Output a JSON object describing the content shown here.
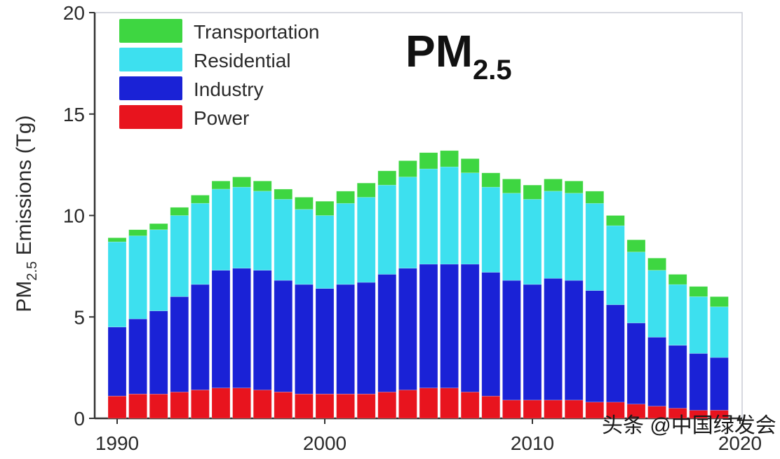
{
  "chart_data": {
    "type": "bar",
    "stacked": true,
    "title": "PM",
    "title_subscript": "2.5",
    "ylabel": "PM",
    "ylabel_subscript": "2.5",
    "ylabel_suffix": " Emissions (Tg)",
    "ylim": [
      0,
      20
    ],
    "yticks": [
      0,
      5,
      10,
      15,
      20
    ],
    "xticks": [
      1990,
      2000,
      2010,
      2020
    ],
    "legend_position": "top-left",
    "categories": [
      1990,
      1991,
      1992,
      1993,
      1994,
      1995,
      1996,
      1997,
      1998,
      1999,
      2000,
      2001,
      2002,
      2003,
      2004,
      2005,
      2006,
      2007,
      2008,
      2009,
      2010,
      2011,
      2012,
      2013,
      2014,
      2015,
      2016,
      2017,
      2018,
      2019
    ],
    "series": [
      {
        "name": "Power",
        "color": "#e8141e",
        "values": [
          1.1,
          1.2,
          1.2,
          1.3,
          1.4,
          1.5,
          1.5,
          1.4,
          1.3,
          1.2,
          1.2,
          1.2,
          1.2,
          1.3,
          1.4,
          1.5,
          1.5,
          1.3,
          1.1,
          0.9,
          0.9,
          0.9,
          0.9,
          0.8,
          0.8,
          0.7,
          0.6,
          0.5,
          0.4,
          0.4
        ]
      },
      {
        "name": "Industry",
        "color": "#1a22d6",
        "values": [
          3.4,
          3.7,
          4.1,
          4.7,
          5.2,
          5.8,
          5.9,
          5.9,
          5.5,
          5.4,
          5.2,
          5.4,
          5.5,
          5.8,
          6.0,
          6.1,
          6.1,
          6.3,
          6.1,
          5.9,
          5.7,
          6.0,
          5.9,
          5.5,
          4.8,
          4.0,
          3.4,
          3.1,
          2.8,
          2.6
        ]
      },
      {
        "name": "Residential",
        "color": "#3de0ef",
        "values": [
          4.2,
          4.1,
          4.0,
          4.0,
          4.0,
          4.0,
          4.0,
          3.9,
          4.0,
          3.7,
          3.6,
          4.0,
          4.2,
          4.4,
          4.5,
          4.7,
          4.8,
          4.5,
          4.2,
          4.3,
          4.2,
          4.3,
          4.3,
          4.3,
          3.9,
          3.5,
          3.3,
          3.0,
          2.8,
          2.5
        ]
      },
      {
        "name": "Transportation",
        "color": "#3ed641",
        "values": [
          0.2,
          0.3,
          0.3,
          0.4,
          0.4,
          0.4,
          0.5,
          0.5,
          0.5,
          0.6,
          0.7,
          0.6,
          0.7,
          0.7,
          0.8,
          0.8,
          0.8,
          0.7,
          0.7,
          0.7,
          0.7,
          0.6,
          0.6,
          0.6,
          0.5,
          0.6,
          0.6,
          0.5,
          0.5,
          0.5
        ]
      }
    ]
  },
  "watermark": "头条 @中国绿发会"
}
